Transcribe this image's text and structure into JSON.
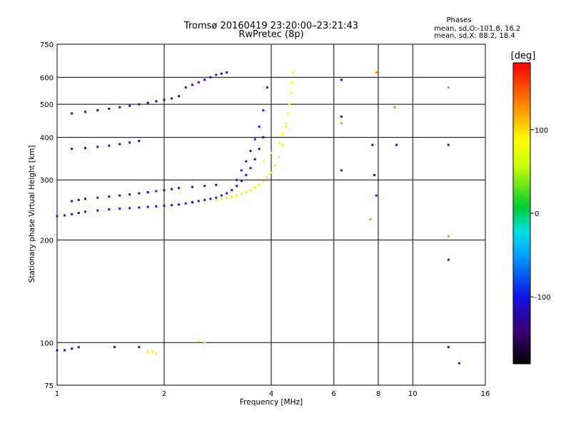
{
  "chart_data": {
    "type": "scatter",
    "title": "Tromsø 20160419 23:20:00–23:21:43",
    "subtitle": "RwPretec (8p)",
    "xlabel": "Frequency [MHz]",
    "ylabel": "Stationary phase Virtual Height [km]",
    "x_scale": "log",
    "y_scale": "log",
    "xlim": [
      1,
      16
    ],
    "ylim": [
      75,
      750
    ],
    "x_ticks": [
      1,
      2,
      4,
      6,
      8,
      10,
      16
    ],
    "y_ticks": [
      75,
      100,
      200,
      300,
      400,
      500,
      600,
      750
    ],
    "vertical_grid": [
      1,
      2,
      4,
      6,
      8,
      10,
      16
    ],
    "horizontal_grid": [
      100,
      200,
      300,
      400,
      500,
      600
    ],
    "stats": {
      "heading": "Phases",
      "line1": "mean, sd,O:-101.8, 16.2",
      "line2": "mean, sd,X:  88.2, 18.4"
    },
    "colorbar": {
      "label": "[deg]",
      "ticks": [
        100,
        0,
        -100
      ],
      "range": [
        -180,
        180
      ]
    },
    "series": [
      {
        "x": [
          1.0,
          1.05,
          1.1,
          1.15,
          1.2,
          1.3,
          1.4,
          1.5,
          1.6,
          1.7,
          1.8,
          1.9,
          2.0,
          2.1,
          2.2,
          2.3,
          2.4,
          2.5,
          2.6,
          2.7,
          2.8,
          2.9,
          3.0,
          3.1,
          3.2,
          3.3,
          3.4,
          3.5,
          3.6,
          3.7,
          3.8
        ],
        "y": [
          235,
          236,
          238,
          240,
          242,
          244,
          246,
          247,
          248,
          249,
          250,
          251,
          252,
          253,
          254,
          256,
          258,
          260,
          262,
          264,
          266,
          270,
          274,
          280,
          288,
          298,
          310,
          325,
          345,
          370,
          400
        ],
        "phase": -110
      },
      {
        "x": [
          1.1,
          1.15,
          1.2,
          1.3,
          1.4,
          1.5,
          1.6,
          1.7,
          1.8,
          1.9,
          2.0,
          2.1,
          2.2,
          2.4,
          2.6,
          2.8
        ],
        "y": [
          260,
          262,
          264,
          266,
          268,
          270,
          272,
          274,
          276,
          278,
          280,
          282,
          284,
          286,
          288,
          290
        ],
        "phase": -120
      },
      {
        "x": [
          2.8,
          2.9,
          3.0,
          3.1,
          3.2,
          3.3,
          3.4,
          3.5,
          3.6,
          3.7,
          3.8,
          3.9,
          4.0,
          4.1,
          4.2,
          4.3,
          4.4
        ],
        "y": [
          262,
          264,
          266,
          268,
          270,
          273,
          276,
          280,
          285,
          290,
          297,
          305,
          315,
          330,
          350,
          380,
          430
        ],
        "phase": 105
      },
      {
        "x": [
          3.8,
          4.0,
          4.2,
          4.3,
          4.4,
          4.45,
          4.5,
          4.55,
          4.58,
          4.6
        ],
        "y": [
          340,
          360,
          385,
          410,
          440,
          470,
          500,
          540,
          580,
          620
        ],
        "phase": 100
      },
      {
        "x": [
          3.2,
          3.3,
          3.4,
          3.5,
          3.6,
          3.7,
          3.8,
          3.9
        ],
        "y": [
          300,
          320,
          340,
          365,
          395,
          430,
          480,
          560
        ],
        "phase": -105
      },
      {
        "x": [
          1.1,
          1.2,
          1.3,
          1.4,
          1.5,
          1.6,
          1.7,
          1.8,
          1.9,
          2.0,
          2.1,
          2.2
        ],
        "y": [
          470,
          475,
          480,
          485,
          490,
          495,
          500,
          505,
          510,
          515,
          520,
          528
        ],
        "phase": -125
      },
      {
        "x": [
          2.3,
          2.4,
          2.5,
          2.6,
          2.7,
          2.8,
          2.9,
          3.0
        ],
        "y": [
          560,
          570,
          580,
          590,
          600,
          610,
          615,
          620
        ],
        "phase": -110
      },
      {
        "x": [
          1.1,
          1.2,
          1.3,
          1.4,
          1.5,
          1.6,
          1.7
        ],
        "y": [
          370,
          372,
          375,
          378,
          382,
          386,
          390
        ],
        "phase": -125
      },
      {
        "x": [
          1.0,
          1.05,
          1.1,
          1.15,
          1.45,
          1.7
        ],
        "y": [
          95,
          95,
          96,
          97,
          97,
          97
        ],
        "phase": -120
      },
      {
        "x": [
          1.8,
          1.85,
          1.9,
          2.5,
          2.6
        ],
        "y": [
          94,
          94,
          93,
          101,
          100
        ],
        "phase": 105
      },
      {
        "x": [
          6.3,
          6.3,
          6.3,
          7.7,
          7.8,
          7.9,
          9.0,
          12.6,
          12.6,
          12.6,
          13.5
        ],
        "y": [
          590,
          460,
          320,
          380,
          310,
          270,
          380,
          380,
          175,
          97,
          87
        ],
        "phase": -110
      },
      {
        "x": [
          6.3,
          7.6,
          7.9,
          8.9,
          12.6,
          12.6
        ],
        "y": [
          440,
          230,
          620,
          490,
          560,
          205
        ],
        "phase": 140
      }
    ]
  }
}
